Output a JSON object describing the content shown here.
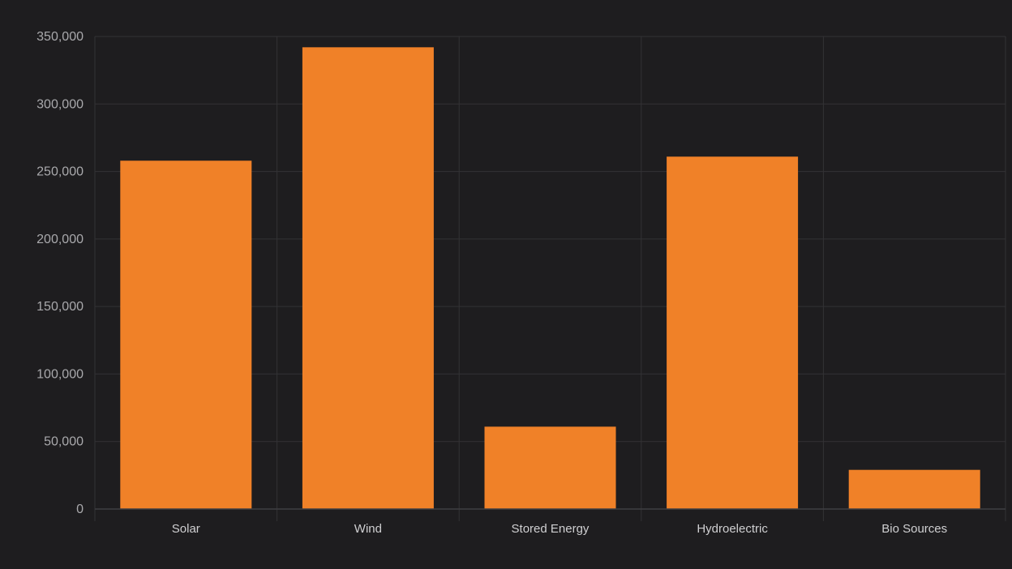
{
  "chart_data": {
    "type": "bar",
    "title": "",
    "xlabel": "",
    "ylabel": "",
    "categories": [
      "Solar",
      "Wind",
      "Stored Energy",
      "Hydroelectric",
      "Bio Sources"
    ],
    "values": [
      258000,
      342000,
      61000,
      261000,
      29000
    ],
    "ylim": [
      0,
      350000
    ],
    "y_ticks": [
      0,
      50000,
      100000,
      150000,
      200000,
      250000,
      300000,
      350000
    ],
    "y_tick_labels": [
      "0",
      "50,000",
      "100,000",
      "150,000",
      "200,000",
      "250,000",
      "300,000",
      "350,000"
    ],
    "grid": true,
    "legend": "none"
  },
  "colors": {
    "background": "#1e1d1f",
    "bar": "#f08128",
    "grid": "#333235",
    "axis": "#3f3e42",
    "tick_text": "#a9a9ac",
    "category_text": "#cfcfd1"
  }
}
